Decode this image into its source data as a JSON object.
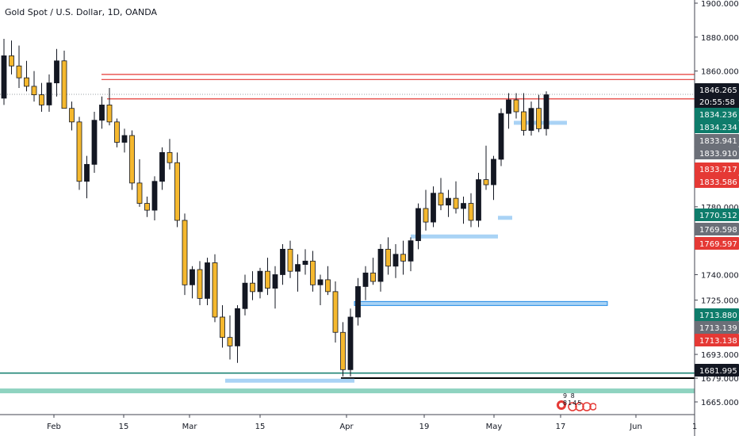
{
  "header": {
    "title": "Gold Spot / U.S. Dollar, 1D, OANDA"
  },
  "colors": {
    "bull_body": "#131722",
    "bear_body": "#f5b82e",
    "wick": "#131722",
    "red_line": "#e53935",
    "blue_zone": "#a9d3f5",
    "blue_zone_border": "#1e88e5",
    "teal_line": "#0e7c6b",
    "teal_band": "#8fd3c0",
    "black_line": "#000000",
    "grid_dots": "#9aa0a6",
    "axis_border": "#434651"
  },
  "chart_data": {
    "type": "candlestick",
    "title": "Gold Spot / U.S. Dollar, 1D, OANDA",
    "y_axis": {
      "ticks": [
        1900.0,
        1880.0,
        1860.0,
        1846.265,
        1834.236,
        1834.234,
        1833.941,
        1833.91,
        1833.717,
        1833.586,
        1780.0,
        1770.512,
        1769.598,
        1769.597,
        1740.0,
        1725.0,
        1713.88,
        1713.139,
        1713.138,
        1693.0,
        1681.995,
        1679.0,
        1665.0
      ],
      "tick_labels": [
        "1900.000",
        "1880.000",
        "1860.000",
        "1780.000",
        "1740.000",
        "1725.000",
        "1693.000",
        "1679.000",
        "1665.000"
      ],
      "range": [
        1665,
        1900
      ]
    },
    "x_axis": {
      "tick_labels": [
        "Feb",
        "15",
        "Mar",
        "15",
        "Apr",
        "19",
        "May",
        "17",
        "Jun",
        "1"
      ]
    },
    "price_tags": [
      {
        "label": "1846.265",
        "sub": "20:55:58",
        "bg": "#131722",
        "fg": "#ffffff"
      },
      {
        "label": "1834.236",
        "bg": "#0e7c6b",
        "fg": "#ffffff"
      },
      {
        "label": "1834.234",
        "bg": "#0e7c6b",
        "fg": "#ffffff"
      },
      {
        "label": "1833.941",
        "bg": "#6b6f78",
        "fg": "#ffffff"
      },
      {
        "label": "1833.910",
        "bg": "#6b6f78",
        "fg": "#ffffff"
      },
      {
        "label": "1833.717",
        "bg": "#e53935",
        "fg": "#ffffff"
      },
      {
        "label": "1833.586",
        "bg": "#e53935",
        "fg": "#ffffff"
      },
      {
        "label": "1770.512",
        "bg": "#0e7c6b",
        "fg": "#ffffff"
      },
      {
        "label": "1769.598",
        "bg": "#6b6f78",
        "fg": "#ffffff"
      },
      {
        "label": "1769.597",
        "bg": "#e53935",
        "fg": "#ffffff"
      },
      {
        "label": "1713.880",
        "bg": "#0e7c6b",
        "fg": "#ffffff"
      },
      {
        "label": "1713.139",
        "bg": "#6b6f78",
        "fg": "#ffffff"
      },
      {
        "label": "1713.138",
        "bg": "#e53935",
        "fg": "#ffffff"
      },
      {
        "label": "1681.995",
        "bg": "#131722",
        "fg": "#ffffff"
      }
    ],
    "candles": [
      [
        1844,
        1879,
        1840,
        1869
      ],
      [
        1869,
        1878,
        1858,
        1863
      ],
      [
        1863,
        1875,
        1850,
        1856
      ],
      [
        1856,
        1866,
        1848,
        1851
      ],
      [
        1851,
        1860,
        1842,
        1846
      ],
      [
        1846,
        1853,
        1836,
        1840
      ],
      [
        1840,
        1858,
        1836,
        1853
      ],
      [
        1853,
        1873,
        1845,
        1866
      ],
      [
        1866,
        1872,
        1840,
        1838
      ],
      [
        1838,
        1842,
        1825,
        1830
      ],
      [
        1830,
        1833,
        1790,
        1795
      ],
      [
        1795,
        1810,
        1785,
        1805
      ],
      [
        1805,
        1836,
        1800,
        1831
      ],
      [
        1831,
        1845,
        1826,
        1840
      ],
      [
        1840,
        1850,
        1828,
        1830
      ],
      [
        1830,
        1832,
        1815,
        1818
      ],
      [
        1818,
        1826,
        1812,
        1822
      ],
      [
        1822,
        1825,
        1790,
        1794
      ],
      [
        1794,
        1808,
        1780,
        1782
      ],
      [
        1782,
        1786,
        1774,
        1778
      ],
      [
        1778,
        1798,
        1772,
        1795
      ],
      [
        1795,
        1815,
        1790,
        1812
      ],
      [
        1812,
        1820,
        1802,
        1806
      ],
      [
        1806,
        1812,
        1768,
        1772
      ],
      [
        1772,
        1776,
        1728,
        1734
      ],
      [
        1734,
        1745,
        1726,
        1743
      ],
      [
        1743,
        1748,
        1722,
        1726
      ],
      [
        1726,
        1750,
        1722,
        1747
      ],
      [
        1747,
        1752,
        1712,
        1715
      ],
      [
        1715,
        1722,
        1697,
        1703
      ],
      [
        1703,
        1716,
        1690,
        1698
      ],
      [
        1698,
        1722,
        1688,
        1720
      ],
      [
        1720,
        1740,
        1716,
        1735
      ],
      [
        1735,
        1742,
        1725,
        1730
      ],
      [
        1730,
        1744,
        1726,
        1742
      ],
      [
        1742,
        1750,
        1728,
        1732
      ],
      [
        1732,
        1745,
        1720,
        1740
      ],
      [
        1740,
        1758,
        1734,
        1755
      ],
      [
        1755,
        1760,
        1738,
        1742
      ],
      [
        1742,
        1752,
        1730,
        1746
      ],
      [
        1746,
        1755,
        1740,
        1748
      ],
      [
        1748,
        1754,
        1730,
        1734
      ],
      [
        1734,
        1740,
        1722,
        1737
      ],
      [
        1737,
        1745,
        1728,
        1730
      ],
      [
        1730,
        1736,
        1700,
        1706
      ],
      [
        1706,
        1712,
        1680,
        1684
      ],
      [
        1684,
        1720,
        1680,
        1715
      ],
      [
        1715,
        1738,
        1710,
        1733
      ],
      [
        1733,
        1745,
        1725,
        1741
      ],
      [
        1741,
        1750,
        1734,
        1736
      ],
      [
        1736,
        1758,
        1730,
        1755
      ],
      [
        1755,
        1762,
        1740,
        1745
      ],
      [
        1745,
        1758,
        1738,
        1752
      ],
      [
        1752,
        1760,
        1740,
        1748
      ],
      [
        1748,
        1762,
        1742,
        1760
      ],
      [
        1760,
        1782,
        1755,
        1779
      ],
      [
        1779,
        1790,
        1766,
        1771
      ],
      [
        1771,
        1792,
        1768,
        1788
      ],
      [
        1788,
        1797,
        1778,
        1781
      ],
      [
        1781,
        1790,
        1774,
        1785
      ],
      [
        1785,
        1795,
        1776,
        1779
      ],
      [
        1779,
        1786,
        1770,
        1782
      ],
      [
        1782,
        1788,
        1768,
        1772
      ],
      [
        1772,
        1800,
        1768,
        1796
      ],
      [
        1796,
        1816,
        1790,
        1793
      ],
      [
        1793,
        1810,
        1784,
        1808
      ],
      [
        1808,
        1838,
        1804,
        1835
      ],
      [
        1835,
        1847,
        1826,
        1843
      ],
      [
        1843,
        1847,
        1832,
        1836
      ],
      [
        1836,
        1847,
        1822,
        1825
      ],
      [
        1825,
        1842,
        1822,
        1838
      ],
      [
        1838,
        1846,
        1824,
        1826
      ],
      [
        1826,
        1848,
        1822,
        1846
      ]
    ],
    "annotations": [
      {
        "type": "hline",
        "price": 1858,
        "color": "red"
      },
      {
        "type": "hline",
        "price": 1855,
        "color": "red"
      },
      {
        "type": "hline",
        "price": 1846.265,
        "color": "dotted"
      },
      {
        "type": "hline",
        "price": 1843.6,
        "color": "red"
      },
      {
        "type": "hline",
        "price": 1681.995,
        "color": "teal"
      },
      {
        "type": "hline",
        "price": 1679.0,
        "color": "black"
      },
      {
        "type": "hline",
        "price": 1671.5,
        "color": "teal-band"
      },
      {
        "type": "zone",
        "price": 1829.5,
        "color": "blue"
      },
      {
        "type": "zone",
        "price": 1773.5,
        "color": "blue"
      },
      {
        "type": "zone",
        "price": 1762.5,
        "color": "blue"
      },
      {
        "type": "zone",
        "price": 1723.0,
        "color": "blue-outlined"
      },
      {
        "type": "zone",
        "price": 1677.5,
        "color": "blue"
      }
    ]
  },
  "badge": {
    "count": "9 8 8145"
  }
}
